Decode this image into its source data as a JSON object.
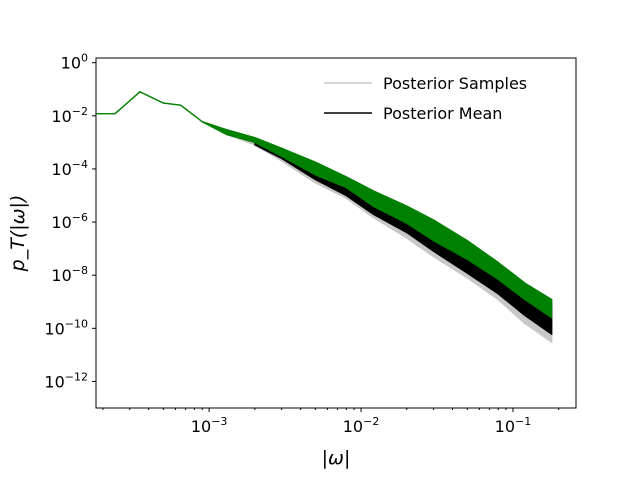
{
  "chart_data": {
    "type": "line",
    "title": "",
    "xlabel": "|ω|",
    "ylabel": "p_T(|ω|)",
    "xscale": "log",
    "yscale": "log",
    "xlim": [
      0.00018,
      0.26
    ],
    "ylim": [
      1e-13,
      1.5
    ],
    "xticks": [
      {
        "value": 0.001,
        "base": "10",
        "exp": "−3"
      },
      {
        "value": 0.01,
        "base": "10",
        "exp": "−2"
      },
      {
        "value": 0.1,
        "base": "10",
        "exp": "−1"
      }
    ],
    "yticks": [
      {
        "value": 1,
        "base": "10",
        "exp": "0"
      },
      {
        "value": 0.01,
        "base": "10",
        "exp": "−2"
      },
      {
        "value": 0.0001,
        "base": "10",
        "exp": "−4"
      },
      {
        "value": 1e-06,
        "base": "10",
        "exp": "−6"
      },
      {
        "value": 1e-08,
        "base": "10",
        "exp": "−8"
      },
      {
        "value": 1e-10,
        "base": "10",
        "exp": "−10"
      },
      {
        "value": 1e-12,
        "base": "10",
        "exp": "−12"
      }
    ],
    "grid": false,
    "legend_position": "top-right",
    "series": [
      {
        "name": "Posterior Samples",
        "color": "#c8c8c8",
        "style": "band",
        "x": [
          0.00018,
          0.00024,
          0.00035,
          0.0005,
          0.00065,
          0.0009,
          0.0013,
          0.002,
          0.003,
          0.005,
          0.008,
          0.012,
          0.02,
          0.03,
          0.05,
          0.08,
          0.12,
          0.18
        ],
        "lower": [
          0.012,
          0.012,
          0.08,
          0.03,
          0.025,
          0.006,
          0.002,
          0.0008,
          0.0002,
          3e-05,
          8e-06,
          1.5e-06,
          2.5e-07,
          5e-08,
          8e-09,
          1.2e-09,
          1.5e-10,
          3e-11
        ],
        "upper": [
          0.012,
          0.012,
          0.08,
          0.03,
          0.025,
          0.006,
          0.003,
          0.0015,
          0.0006,
          0.00018,
          5e-05,
          1.5e-05,
          4e-06,
          1.2e-06,
          2e-07,
          3e-08,
          5e-09,
          1.2e-09
        ]
      },
      {
        "name": "Posterior Mean",
        "color": "#000000",
        "style": "band",
        "x": [
          0.002,
          0.003,
          0.005,
          0.008,
          0.012,
          0.02,
          0.03,
          0.05,
          0.08,
          0.12,
          0.18
        ],
        "lower": [
          0.0008,
          0.00025,
          4e-05,
          1e-05,
          2e-06,
          4e-07,
          8e-08,
          1.2e-08,
          2e-09,
          3e-10,
          6e-11
        ],
        "upper": [
          0.0012,
          0.0004,
          0.0001,
          3e-05,
          8e-06,
          2e-06,
          6e-07,
          1e-07,
          1.5e-08,
          3e-09,
          7e-10
        ]
      },
      {
        "name": "",
        "color": "#008000",
        "style": "band",
        "x": [
          0.00018,
          0.00024,
          0.00035,
          0.0005,
          0.00065,
          0.0009,
          0.0013,
          0.002,
          0.003,
          0.005,
          0.008,
          0.012,
          0.02,
          0.03,
          0.05,
          0.08,
          0.12,
          0.18
        ],
        "lower": [
          0.012,
          0.012,
          0.08,
          0.03,
          0.025,
          0.006,
          0.002,
          0.001,
          0.0003,
          6e-05,
          2e-05,
          4e-06,
          9e-07,
          2e-07,
          4e-08,
          7e-09,
          1.2e-09,
          2.5e-10
        ],
        "upper": [
          0.012,
          0.012,
          0.08,
          0.03,
          0.025,
          0.006,
          0.003,
          0.0015,
          0.0006,
          0.00018,
          5e-05,
          1.5e-05,
          4e-06,
          1.2e-06,
          2e-07,
          3e-08,
          5e-09,
          1.2e-09
        ]
      }
    ]
  }
}
